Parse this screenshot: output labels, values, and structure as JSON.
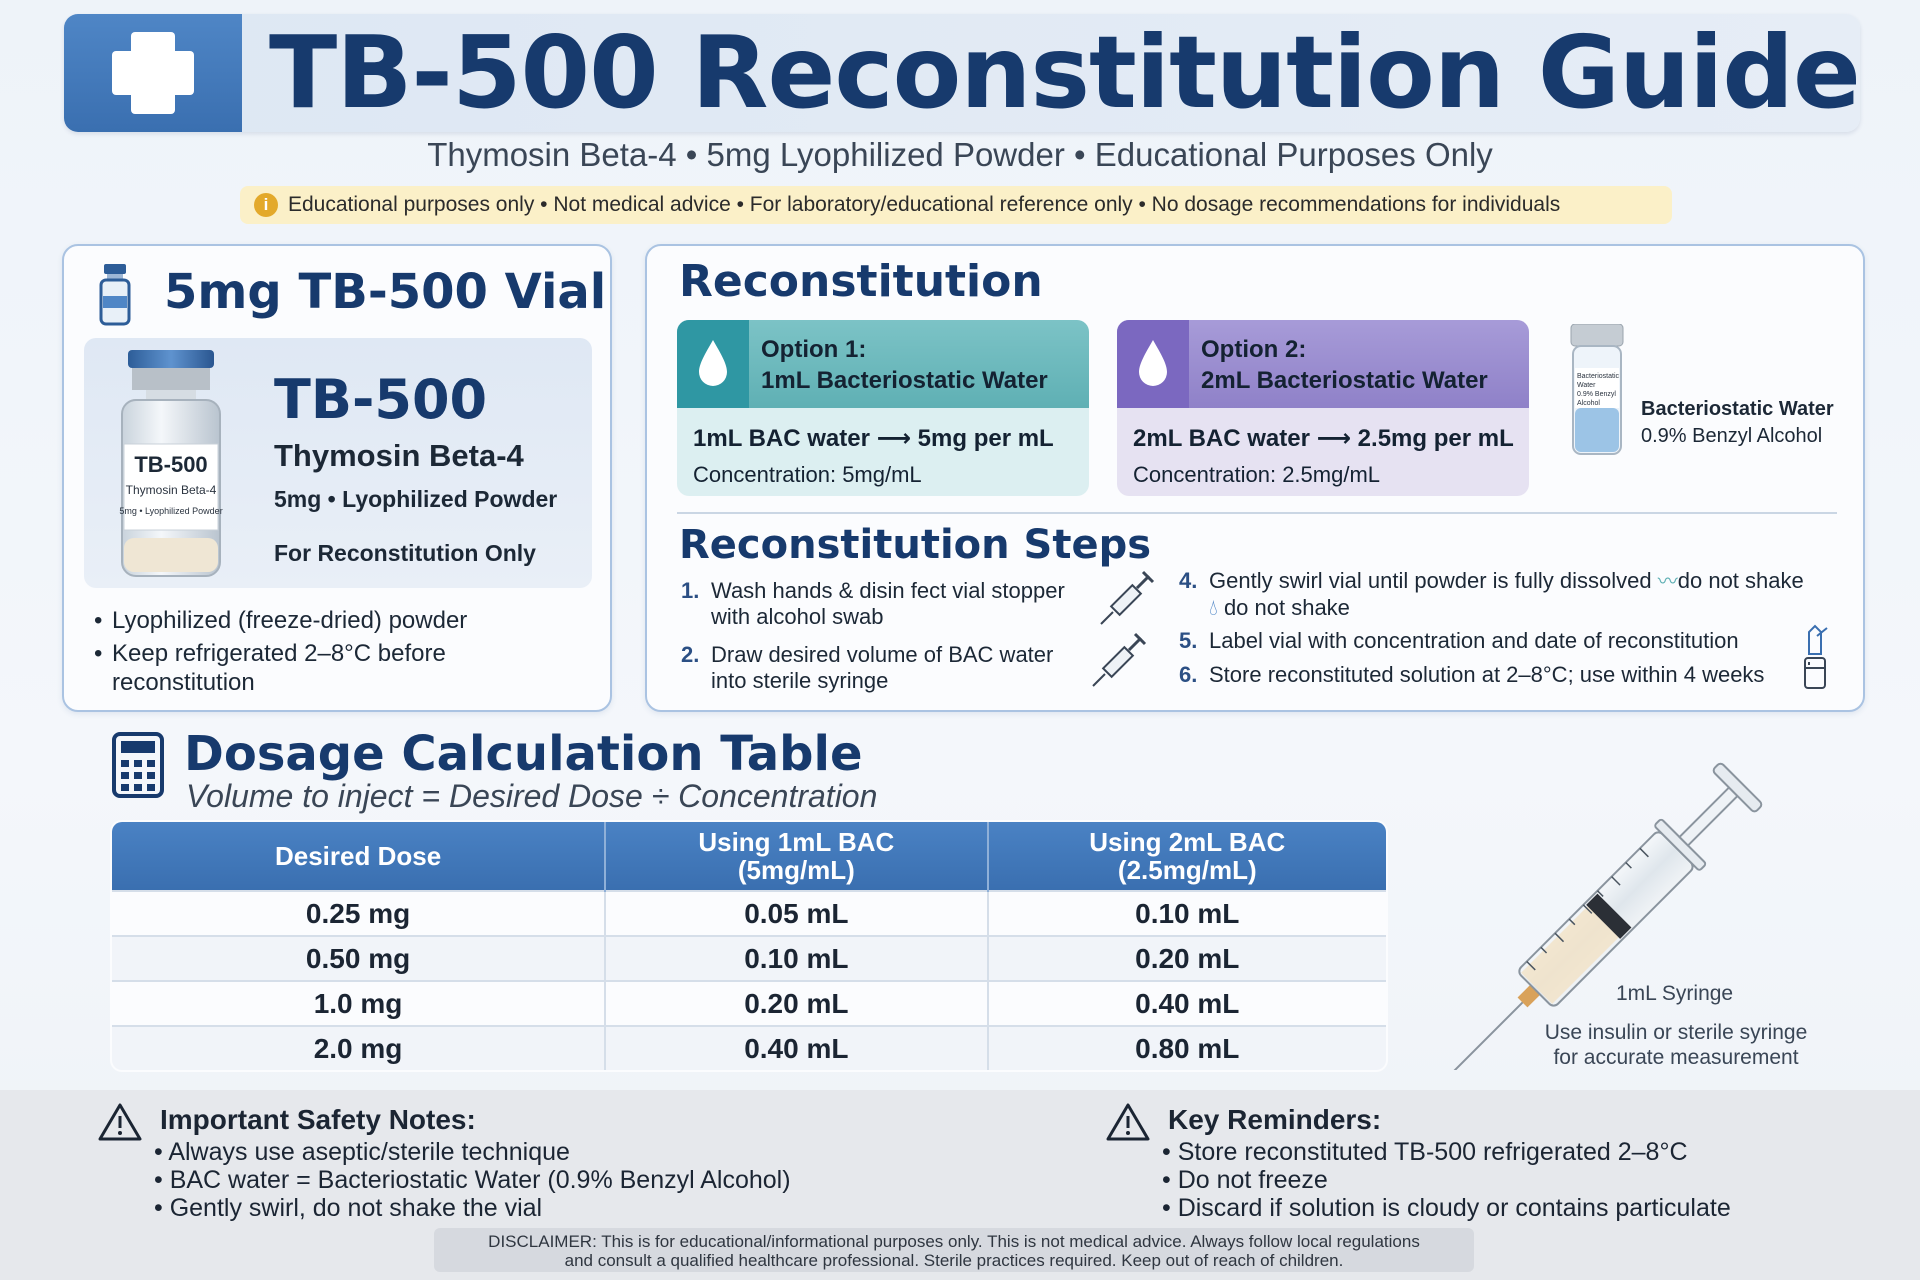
{
  "header": {
    "title": "TB-500 Reconstitution Guide",
    "subtitle": "Thymosin Beta-4 • 5mg Lyophilized Powder • Educational Purposes Only",
    "notice": "Educational purposes only • Not medical advice • For laboratory/educational reference only • No dosage recommendations for individuals"
  },
  "vial_card": {
    "title": "5mg TB-500 Vial",
    "vial_label_name": "TB-500",
    "vial_label_sub": "Thymosin Beta-4",
    "vial_label_spec": "5mg • Lyophilized Powder",
    "name": "TB-500",
    "full_name": "Thymosin Beta-4",
    "spec": "5mg • Lyophilized Powder",
    "use": "For Reconstitution Only",
    "notes": [
      "Lyophilized (freeze-dried) powder",
      "Keep refrigerated 2–8°C before reconstitution"
    ]
  },
  "reconstitution": {
    "title": "Reconstitution",
    "option1": {
      "label_line1": "Option 1:",
      "label_line2": "1mL Bacteriostatic Water",
      "formula": "1mL BAC water ⟶ 5mg per mL",
      "concentration": "Concentration: 5mg/mL"
    },
    "option2": {
      "label_line1": "Option 2:",
      "label_line2": "2mL Bacteriostatic Water",
      "formula": "2mL BAC water ⟶ 2.5mg per mL",
      "concentration": "Concentration: 2.5mg/mL"
    },
    "bac": {
      "line1": "Bacteriostatic Water",
      "line2": "0.9% Benzyl Alcohol",
      "bottle_line1": "Bacteriostatic",
      "bottle_line2": "Water",
      "bottle_line3": "0.9% Benzyl",
      "bottle_line4": "Alcohol"
    }
  },
  "steps": {
    "title": "Reconstitution Steps",
    "items": [
      {
        "num": "1.",
        "text": "Wash hands & disin fect vial stopper with alcohol swab"
      },
      {
        "num": "2.",
        "text": "Draw desired volume of BAC water into sterile syringe"
      },
      {
        "num": "4.",
        "text_a": "Gently swirl vial until powder is fully dissolved",
        "text_b": "do not shake",
        "text_c": "do not shake"
      },
      {
        "num": "5.",
        "text": "Label vial with concentration and date of reconstitution"
      },
      {
        "num": "6.",
        "text": "Store reconstituted solution at 2–8°C; use within 4 weeks"
      }
    ]
  },
  "dosage": {
    "title": "Dosage Calculation Table",
    "formula": "Volume to inject = Desired Dose ÷ Concentration",
    "columns": [
      {
        "line1": "Desired Dose",
        "line2": ""
      },
      {
        "line1": "Using 1mL BAC",
        "line2": "(5mg/mL)"
      },
      {
        "line1": "Using 2mL BAC",
        "line2": "(2.5mg/mL)"
      }
    ],
    "rows": [
      [
        "0.25 mg",
        "0.05 mL",
        "0.10 mL"
      ],
      [
        "0.50 mg",
        "0.10 mL",
        "0.20 mL"
      ],
      [
        "1.0 mg",
        "0.20 mL",
        "0.40 mL"
      ],
      [
        "2.0 mg",
        "0.40 mL",
        "0.80 mL"
      ]
    ]
  },
  "syringe": {
    "caption": "1mL Syringe",
    "note": "Use insulin or sterile syringe for accurate measurement"
  },
  "safety": {
    "title": "Important Safety Notes:",
    "items": [
      "Always use aseptic/sterile technique",
      "BAC water = Bacteriostatic Water (0.9% Benzyl Alcohol)",
      "Gently swirl, do not shake the vial"
    ]
  },
  "reminders": {
    "title": "Key Reminders:",
    "items": [
      "Store reconstituted TB-500 refrigerated 2–8°C",
      "Do not freeze",
      "Discard if solution is cloudy or contains particulate"
    ]
  },
  "disclaimer": {
    "line1": "DISCLAIMER: This is for educational/informational purposes only. This is not medical advice. Always follow local regulations",
    "line2": "and consult a qualified healthcare professional. Sterile practices required. Keep out of reach of children."
  },
  "colors": {
    "title_navy": "#173a6d",
    "accent_blue": "#3a6fb0",
    "option1_teal": "#5fb0b4",
    "option2_purple": "#8f81c8",
    "notice_yellow": "#fbf0c8"
  }
}
